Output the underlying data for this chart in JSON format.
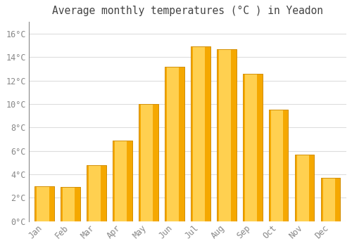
{
  "title": "Average monthly temperatures (°C ) in Yeadon",
  "months": [
    "Jan",
    "Feb",
    "Mar",
    "Apr",
    "May",
    "Jun",
    "Jul",
    "Aug",
    "Sep",
    "Oct",
    "Nov",
    "Dec"
  ],
  "temperatures": [
    3.0,
    2.9,
    4.8,
    6.9,
    10.0,
    13.2,
    14.9,
    14.7,
    12.6,
    9.5,
    5.7,
    3.7
  ],
  "bar_color_outer": "#F5A800",
  "bar_color_inner": "#FFD050",
  "bar_color_mid": "#FFC030",
  "background_color": "#FFFFFF",
  "plot_bg_color": "#FFFFFF",
  "grid_color": "#DDDDDD",
  "ylim": [
    0,
    17
  ],
  "yticks": [
    0,
    2,
    4,
    6,
    8,
    10,
    12,
    14,
    16
  ],
  "ytick_step": 2,
  "title_fontsize": 10.5,
  "tick_fontsize": 8.5,
  "tick_color": "#888888",
  "spine_color": "#888888",
  "bar_width": 0.75
}
